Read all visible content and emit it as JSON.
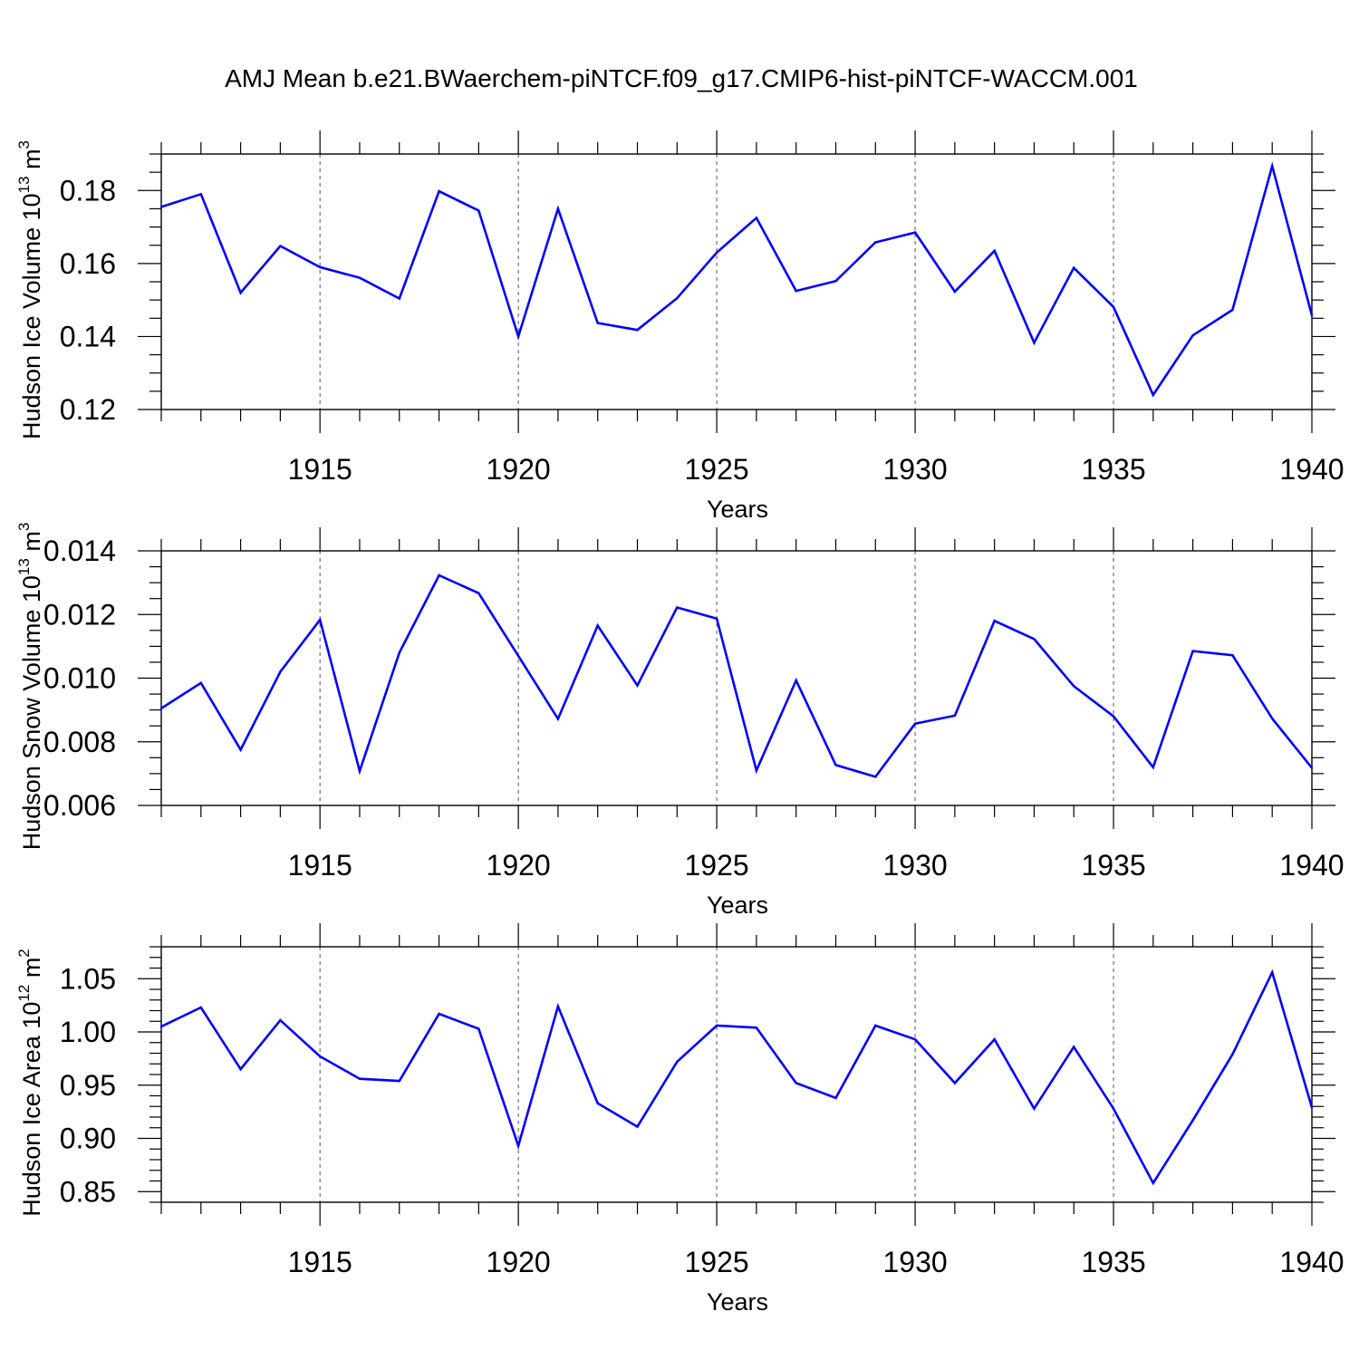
{
  "title": "AMJ Mean b.e21.BWaerchem-piNTCF.f09_g17.CMIP6-hist-piNTCF-WACCM.001",
  "colors": {
    "series": "#0000ff",
    "axis": "#000000",
    "grid": "#555555"
  },
  "chart_data": [
    {
      "type": "line",
      "ylabel": "Hudson Ice Volume",
      "yunit": "10",
      "yunit_exp": "13",
      "yunit_base": "m",
      "yunit_base_exp": "3",
      "xlabel": "Years",
      "xlim": [
        1911,
        1940
      ],
      "ylim": [
        0.12,
        0.19
      ],
      "xticks": [
        1915,
        1920,
        1925,
        1930,
        1935,
        1940
      ],
      "xtick_labels": [
        "1915",
        "1920",
        "1925",
        "1930",
        "1935",
        "1940"
      ],
      "yticks": [
        0.12,
        0.14,
        0.16,
        0.18
      ],
      "ytick_labels": [
        "0.12",
        "0.14",
        "0.16",
        "0.18"
      ],
      "ymin_step": 0.005,
      "grid": "vertical dashed at major x ticks",
      "x": [
        1911,
        1912,
        1913,
        1914,
        1915,
        1916,
        1917,
        1918,
        1919,
        1920,
        1921,
        1922,
        1923,
        1924,
        1925,
        1926,
        1927,
        1928,
        1929,
        1930,
        1931,
        1932,
        1933,
        1934,
        1935,
        1936,
        1937,
        1938,
        1939,
        1940
      ],
      "y": [
        0.1755,
        0.179,
        0.152,
        0.1648,
        0.159,
        0.1561,
        0.1504,
        0.1798,
        0.1745,
        0.14,
        0.175,
        0.1437,
        0.1418,
        0.1505,
        0.163,
        0.1725,
        0.1525,
        0.1552,
        0.1658,
        0.1685,
        0.1523,
        0.1635,
        0.1383,
        0.1588,
        0.1481,
        0.124,
        0.1403,
        0.1473,
        0.1867,
        0.1458
      ]
    },
    {
      "type": "line",
      "ylabel": "Hudson Snow Volume",
      "yunit": "10",
      "yunit_exp": "13",
      "yunit_base": "m",
      "yunit_base_exp": "3",
      "xlabel": "Years",
      "xlim": [
        1911,
        1940
      ],
      "ylim": [
        0.006,
        0.014
      ],
      "xticks": [
        1915,
        1920,
        1925,
        1930,
        1935,
        1940
      ],
      "xtick_labels": [
        "1915",
        "1920",
        "1925",
        "1930",
        "1935",
        "1940"
      ],
      "yticks": [
        0.006,
        0.008,
        0.01,
        0.012,
        0.014
      ],
      "ytick_labels": [
        "0.006",
        "0.008",
        "0.010",
        "0.012",
        "0.014"
      ],
      "ymin_step": 0.0005,
      "grid": "vertical dashed at major x ticks",
      "x": [
        1911,
        1912,
        1913,
        1914,
        1915,
        1916,
        1917,
        1918,
        1919,
        1920,
        1921,
        1922,
        1923,
        1924,
        1925,
        1926,
        1927,
        1928,
        1929,
        1930,
        1931,
        1932,
        1933,
        1934,
        1935,
        1936,
        1937,
        1938,
        1939,
        1940
      ],
      "y": [
        0.00905,
        0.00985,
        0.00775,
        0.0102,
        0.01183,
        0.00708,
        0.0108,
        0.01323,
        0.01267,
        0.0107,
        0.00872,
        0.01165,
        0.00977,
        0.01222,
        0.01187,
        0.0071,
        0.00993,
        0.00727,
        0.0069,
        0.00857,
        0.00882,
        0.0118,
        0.01123,
        0.00975,
        0.0088,
        0.0072,
        0.01085,
        0.01072,
        0.00873,
        0.00718
      ]
    },
    {
      "type": "line",
      "ylabel": "Hudson Ice Area",
      "yunit": "10",
      "yunit_exp": "12",
      "yunit_base": "m",
      "yunit_base_exp": "2",
      "xlabel": "Years",
      "xlim": [
        1911,
        1940
      ],
      "ylim": [
        0.84,
        1.08
      ],
      "xticks": [
        1915,
        1920,
        1925,
        1930,
        1935,
        1940
      ],
      "xtick_labels": [
        "1915",
        "1920",
        "1925",
        "1930",
        "1935",
        "1940"
      ],
      "yticks": [
        0.85,
        0.9,
        0.95,
        1.0,
        1.05
      ],
      "ytick_labels": [
        "0.85",
        "0.90",
        "0.95",
        "1.00",
        "1.05"
      ],
      "ymin_step": 0.01,
      "grid": "vertical dashed at major x ticks",
      "x": [
        1911,
        1912,
        1913,
        1914,
        1915,
        1916,
        1917,
        1918,
        1919,
        1920,
        1921,
        1922,
        1923,
        1924,
        1925,
        1926,
        1927,
        1928,
        1929,
        1930,
        1931,
        1932,
        1933,
        1934,
        1935,
        1936,
        1937,
        1938,
        1939,
        1940
      ],
      "y": [
        1.005,
        1.023,
        0.965,
        1.011,
        0.977,
        0.956,
        0.954,
        1.017,
        1.003,
        0.893,
        1.024,
        0.933,
        0.911,
        0.972,
        1.006,
        1.004,
        0.952,
        0.938,
        1.006,
        0.993,
        0.952,
        0.993,
        0.928,
        0.986,
        0.928,
        0.858,
        0.917,
        0.979,
        1.056,
        0.929
      ]
    }
  ]
}
